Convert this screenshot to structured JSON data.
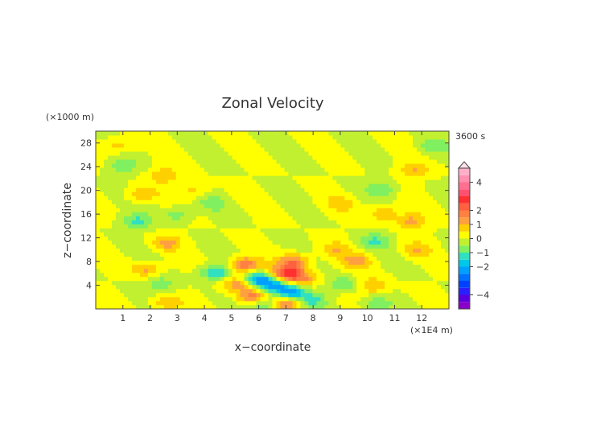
{
  "chart_data": {
    "type": "heatmap",
    "title": "Zonal Velocity",
    "xlabel": "x−coordinate",
    "ylabel": "z−coordinate",
    "x_unit": "(×1E4 m)",
    "y_unit": "(×1000 m)",
    "time_label": "3600 s",
    "xlim": [
      0,
      13
    ],
    "ylim": [
      0,
      30
    ],
    "x_ticks": [
      1,
      2,
      3,
      4,
      5,
      6,
      7,
      8,
      9,
      10,
      11,
      12
    ],
    "y_ticks": [
      4,
      8,
      12,
      16,
      20,
      24,
      28
    ],
    "colorbar": {
      "levels": [
        -5,
        -4.5,
        -4,
        -3.5,
        -3,
        -2.5,
        -2,
        -1.5,
        -1,
        -0.5,
        0,
        0.5,
        1,
        1.5,
        2,
        2.5,
        3,
        3.5,
        4,
        4.5,
        5
      ],
      "tick_labels": [
        "4",
        "2",
        "1",
        "0",
        "−1",
        "−2",
        "−4"
      ],
      "tick_values": [
        4,
        2,
        1,
        0,
        -1,
        -2,
        -4
      ],
      "colors": [
        "#8a00c8",
        "#5a00e0",
        "#2a20ff",
        "#0040ff",
        "#0070ff",
        "#00a0ff",
        "#00c8e8",
        "#30e0c0",
        "#80f060",
        "#c0f030",
        "#ffff00",
        "#ffd000",
        "#ffa040",
        "#ff8040",
        "#ff6040",
        "#ff3030",
        "#ff5070",
        "#ff7090",
        "#ff90b0",
        "#ffb0c8"
      ]
    },
    "features": [
      {
        "x": 1.9,
        "z": 6.8,
        "u": 1.2
      },
      {
        "x": 2.4,
        "z": 4.2,
        "u": -0.9
      },
      {
        "x": 2.6,
        "z": 1.0,
        "u": 1.0
      },
      {
        "x": 1.5,
        "z": 14.8,
        "u": -1.1
      },
      {
        "x": 2.6,
        "z": 11.2,
        "u": 1.1
      },
      {
        "x": 3.0,
        "z": 16.0,
        "u": -0.8
      },
      {
        "x": 2.5,
        "z": 22.6,
        "u": 1.0
      },
      {
        "x": 1.7,
        "z": 19.4,
        "u": 1.0
      },
      {
        "x": 1.0,
        "z": 24.2,
        "u": -0.9
      },
      {
        "x": 0.8,
        "z": 27.6,
        "u": 0.9
      },
      {
        "x": 4.4,
        "z": 6.2,
        "u": -1.6
      },
      {
        "x": 5.2,
        "z": 4.2,
        "u": 1.4
      },
      {
        "x": 5.5,
        "z": 7.5,
        "u": 2.0
      },
      {
        "x": 5.8,
        "z": 2.0,
        "u": 2.0
      },
      {
        "x": 6.0,
        "z": 5.0,
        "u": -2.2
      },
      {
        "x": 6.2,
        "z": 1.0,
        "u": -1.5
      },
      {
        "x": 7.0,
        "z": 6.0,
        "u": 2.5
      },
      {
        "x": 7.2,
        "z": 2.8,
        "u": -2.0
      },
      {
        "x": 7.3,
        "z": 8.0,
        "u": 1.8
      },
      {
        "x": 6.6,
        "z": 4.0,
        "u": -1.8
      },
      {
        "x": 7.0,
        "z": 1.0,
        "u": 1.6
      },
      {
        "x": 7.6,
        "z": 5.2,
        "u": 1.4
      },
      {
        "x": 8.0,
        "z": 1.5,
        "u": -1.0
      },
      {
        "x": 9.6,
        "z": 8.0,
        "u": 1.2
      },
      {
        "x": 9.1,
        "z": 4.2,
        "u": -1.0
      },
      {
        "x": 10.2,
        "z": 4.0,
        "u": 1.1
      },
      {
        "x": 10.3,
        "z": 11.5,
        "u": -1.0
      },
      {
        "x": 11.6,
        "z": 14.8,
        "u": 1.2
      },
      {
        "x": 10.6,
        "z": 16.2,
        "u": 1.0
      },
      {
        "x": 10.5,
        "z": 20.3,
        "u": -0.9
      },
      {
        "x": 11.7,
        "z": 23.4,
        "u": 1.0
      },
      {
        "x": 11.8,
        "z": 10.0,
        "u": 0.9
      },
      {
        "x": 10.3,
        "z": 0.8,
        "u": -0.9
      },
      {
        "x": 8.8,
        "z": 10.0,
        "u": 0.9
      },
      {
        "x": 12.4,
        "z": 27.5,
        "u": -0.8
      },
      {
        "x": 4.3,
        "z": 17.8,
        "u": -0.7
      },
      {
        "x": 3.6,
        "z": 20.0,
        "u": 0.7
      },
      {
        "x": 9.0,
        "z": 17.8,
        "u": 0.7
      }
    ]
  }
}
